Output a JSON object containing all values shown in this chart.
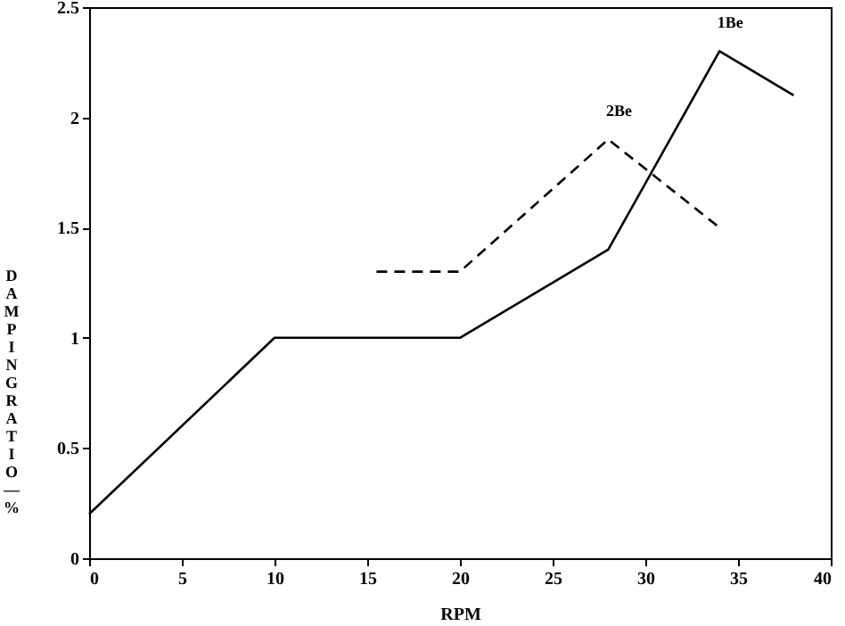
{
  "chart_data": {
    "type": "line",
    "xlabel": "RPM",
    "ylabel": "DAMPING RATIO — %",
    "xlim": [
      0,
      40
    ],
    "ylim": [
      0,
      2.5
    ],
    "xticks": [
      0,
      5,
      10,
      15,
      20,
      25,
      30,
      35,
      40
    ],
    "yticks": [
      0,
      0.5,
      1,
      1.5,
      2,
      2.5
    ],
    "series": [
      {
        "name": "1Be",
        "color": "#000000",
        "line_style": "solid",
        "x": [
          0,
          10,
          20,
          28,
          34,
          38
        ],
        "values": [
          0.2,
          1,
          1,
          1.4,
          2.3,
          2.1
        ]
      },
      {
        "name": "2Be",
        "color": "#000000",
        "line_style": "dashed",
        "x": [
          15.5,
          20,
          28,
          34
        ],
        "values": [
          1.3,
          1.3,
          1.9,
          1.5
        ]
      }
    ]
  }
}
